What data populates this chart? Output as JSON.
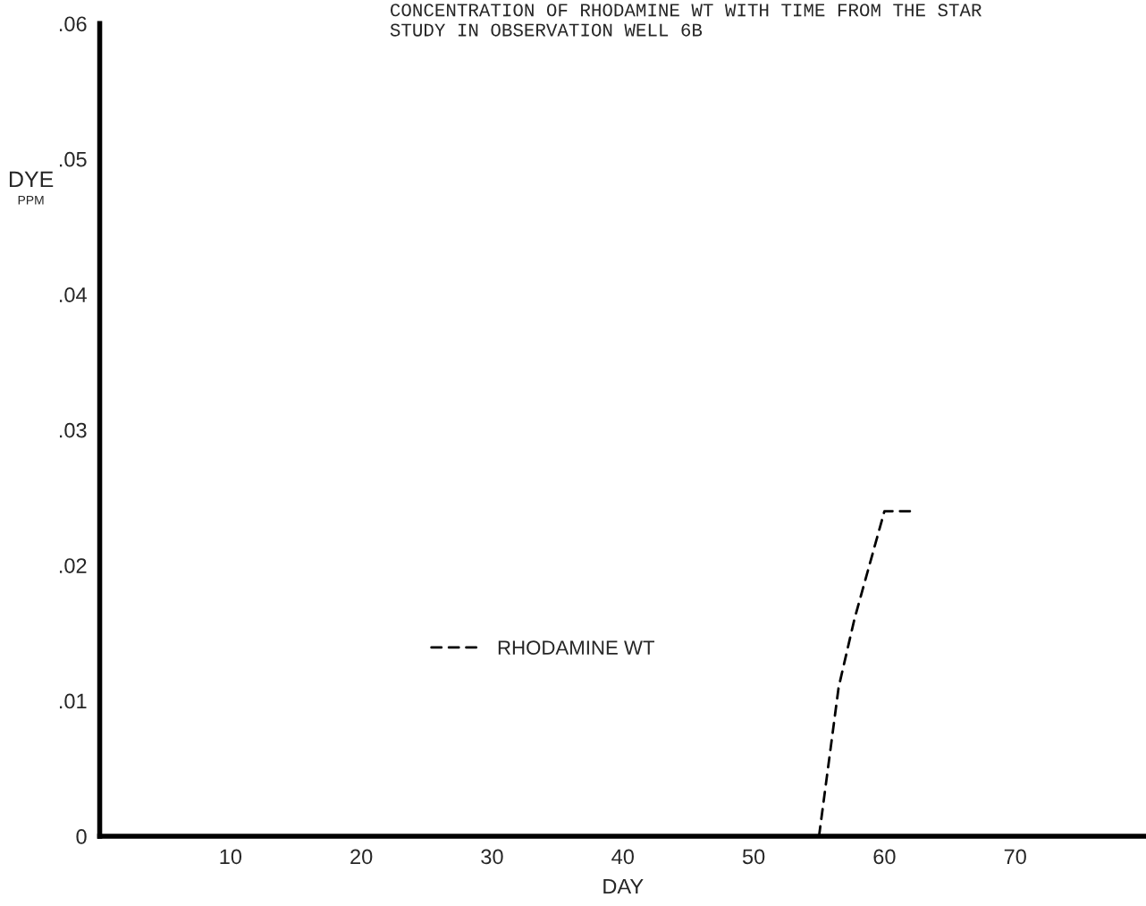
{
  "chart_data": {
    "type": "line",
    "title": "CONCENTRATION OF RHODAMINE WT WITH TIME FROM THE STAR",
    "subtitle": "STUDY IN OBSERVATION WELL 6B",
    "xlabel": "DAY",
    "ylabel": "DYE\nPPM",
    "series": [
      {
        "name": "RHODAMINE WT",
        "color": "#000000",
        "x": [
          55,
          56.5,
          57.7,
          60,
          62
        ],
        "values": [
          0,
          0.011,
          0.016,
          0.024,
          0.024
        ]
      }
    ],
    "xlim": [
      0,
      80
    ],
    "ylim": [
      0,
      0.06
    ],
    "xticks": [
      10,
      20,
      30,
      40,
      50,
      60,
      70
    ],
    "yticks": [
      0,
      {
        "value": 0.01,
        "label": ".01"
      },
      {
        "value": 0.02,
        "label": ".02"
      },
      {
        "value": 0.03,
        "label": ".03"
      },
      {
        "value": 0.04,
        "label": ".04"
      },
      {
        "value": 0.05,
        "label": ".05"
      },
      {
        "value": 0.06,
        "label": ".06"
      }
    ],
    "line_style": "dashed",
    "legend": "center left",
    "grid": false
  }
}
